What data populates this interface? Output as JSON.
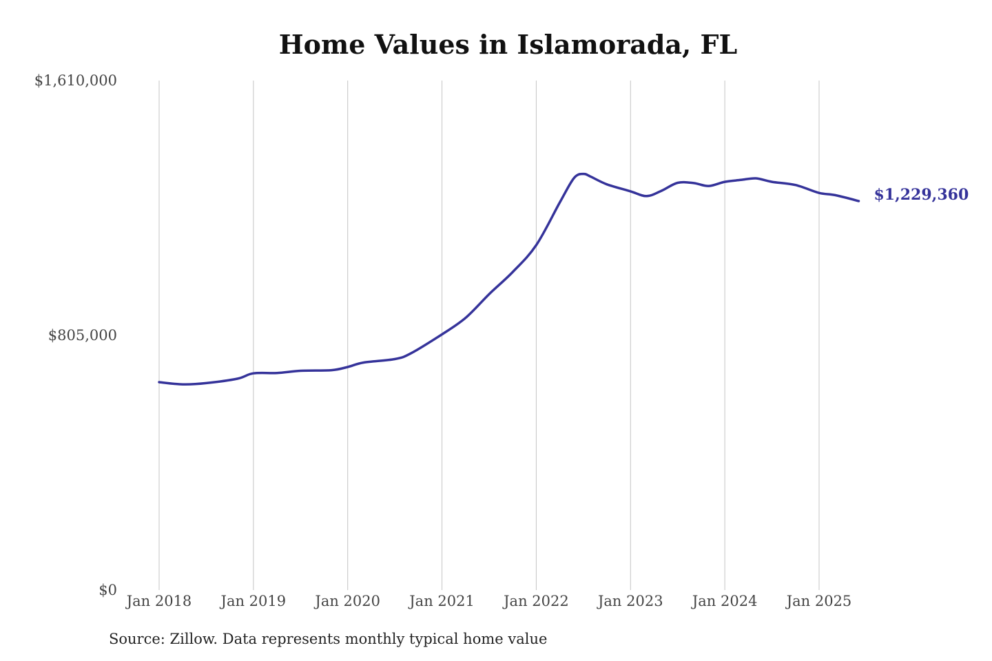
{
  "chart_data": {
    "type": "line",
    "title": "Home Values in Islamorada, FL",
    "xlabel": "",
    "ylabel": "",
    "ylim": [
      0,
      1610000
    ],
    "y_ticks": [
      {
        "value": 0,
        "label": "$0"
      },
      {
        "value": 805000,
        "label": "$805,000"
      },
      {
        "value": 1610000,
        "label": "$1,610,000"
      }
    ],
    "x_ticks": [
      {
        "value": 2018.0,
        "label": "Jan 2018"
      },
      {
        "value": 2019.0,
        "label": "Jan 2019"
      },
      {
        "value": 2020.0,
        "label": "Jan 2020"
      },
      {
        "value": 2021.0,
        "label": "Jan 2021"
      },
      {
        "value": 2022.0,
        "label": "Jan 2022"
      },
      {
        "value": 2023.0,
        "label": "Jan 2023"
      },
      {
        "value": 2024.0,
        "label": "Jan 2024"
      },
      {
        "value": 2025.0,
        "label": "Jan 2025"
      }
    ],
    "grid": {
      "vertical": true,
      "horizontal": false
    },
    "series": [
      {
        "color": "#35339a",
        "end_label": "$1,229,360",
        "x": [
          2018.0,
          2018.25,
          2018.5,
          2018.83,
          2019.0,
          2019.25,
          2019.5,
          2019.83,
          2020.0,
          2020.17,
          2020.5,
          2020.67,
          2021.0,
          2021.25,
          2021.5,
          2021.75,
          2022.0,
          2022.25,
          2022.4,
          2022.5,
          2022.58,
          2022.75,
          2023.0,
          2023.17,
          2023.33,
          2023.5,
          2023.67,
          2023.83,
          2024.0,
          2024.17,
          2024.33,
          2024.5,
          2024.75,
          2025.0,
          2025.17,
          2025.42
        ],
        "values": [
          657000,
          650000,
          654000,
          668000,
          685000,
          686000,
          693000,
          695000,
          705000,
          719000,
          730000,
          748000,
          808000,
          860000,
          935000,
          1005000,
          1090000,
          1225000,
          1302000,
          1315000,
          1306000,
          1282000,
          1260000,
          1245000,
          1262000,
          1287000,
          1286000,
          1277000,
          1290000,
          1296000,
          1301000,
          1290000,
          1280000,
          1255000,
          1248000,
          1229360
        ]
      }
    ]
  },
  "source_note": "Source: Zillow. Data represents monthly typical home value"
}
